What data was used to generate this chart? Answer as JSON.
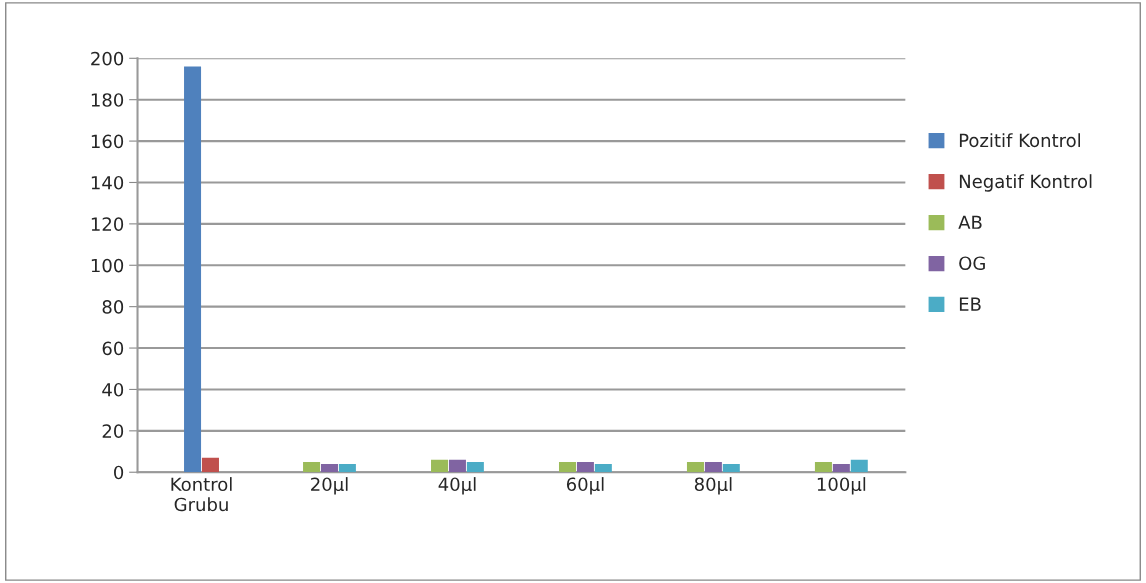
{
  "chart_data": {
    "type": "bar",
    "categories": [
      "Kontrol\nGrubu",
      "20µl",
      "40µl",
      "60µl",
      "80µl",
      "100µl"
    ],
    "series": [
      {
        "name": "Pozitif Kontrol",
        "color": "#4f81bd",
        "values": [
          196,
          null,
          null,
          null,
          null,
          null
        ]
      },
      {
        "name": "Negatif Kontrol",
        "color": "#c0504d",
        "values": [
          7,
          null,
          null,
          null,
          null,
          null
        ]
      },
      {
        "name": "AB",
        "color": "#9bbb59",
        "values": [
          null,
          5,
          6,
          5,
          5,
          5
        ]
      },
      {
        "name": "OG",
        "color": "#8064a2",
        "values": [
          null,
          4,
          6,
          5,
          5,
          4
        ]
      },
      {
        "name": "EB",
        "color": "#4bacc6",
        "values": [
          null,
          4,
          5,
          4,
          4,
          6
        ]
      }
    ],
    "ylim": [
      0,
      200
    ],
    "yticks": [
      0,
      20,
      40,
      60,
      80,
      100,
      120,
      140,
      160,
      180,
      200
    ],
    "grid": "y",
    "legend": "right"
  }
}
